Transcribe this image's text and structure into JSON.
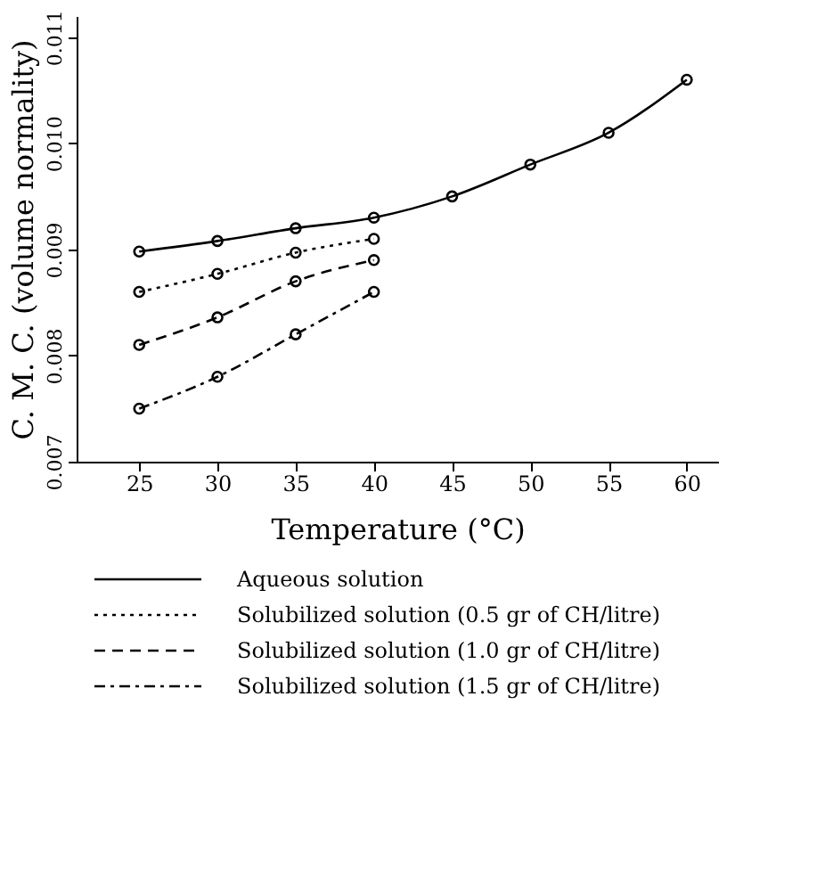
{
  "chart_data": {
    "type": "line",
    "xlabel": "Temperature (°C)",
    "ylabel": "C. M. C. (volume normality)",
    "x": [
      25,
      30,
      35,
      40,
      45,
      50,
      55,
      60
    ],
    "series": [
      {
        "name": "Aqueous solution",
        "color": "#000000",
        "line_style": "solid",
        "values": [
          0.00898,
          0.00908,
          0.0092,
          0.0093,
          0.0095,
          0.0098,
          0.0101,
          0.0106
        ]
      },
      {
        "name": "Solubilized solution (0.5 gr of CH/litre)",
        "color": "#000000",
        "line_style": "dotted",
        "x": [
          25,
          30,
          35,
          40
        ],
        "values": [
          0.0086,
          0.00877,
          0.00897,
          0.0091
        ]
      },
      {
        "name": "Solubilized solution (1.0 gr of CH/litre)",
        "color": "#000000",
        "line_style": "dashed",
        "x": [
          25,
          30,
          35,
          40
        ],
        "values": [
          0.0081,
          0.00836,
          0.0087,
          0.0089
        ]
      },
      {
        "name": "Solubilized solution (1.5 gr of CH/litre)",
        "color": "#000000",
        "line_style": "dashdot",
        "x": [
          25,
          30,
          35,
          40
        ],
        "values": [
          0.0075,
          0.0078,
          0.0082,
          0.0086
        ]
      }
    ],
    "xlim": [
      21,
      62
    ],
    "xticks": [
      25,
      30,
      35,
      40,
      45,
      50,
      55,
      60
    ],
    "ylim": [
      0.007,
      0.0112
    ],
    "yticks": [
      {
        "value": 0.007,
        "label": "0.007"
      },
      {
        "value": 0.008,
        "label": "0.008"
      },
      {
        "value": 0.009,
        "label": "0.009"
      },
      {
        "value": 0.01,
        "label": "0.010"
      },
      {
        "value": 0.011,
        "label": "0.011"
      }
    ],
    "marker": "circle",
    "grid": false,
    "legend": "bottom"
  }
}
